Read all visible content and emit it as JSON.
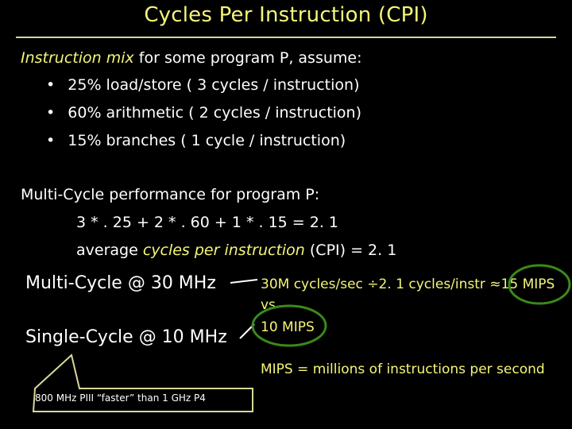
{
  "title": "Cycles Per Instruction (CPI)",
  "intro": {
    "italic": "Instruction mix",
    "rest": " for some program P, assume:"
  },
  "bullets": [
    {
      "mark": "•",
      "text": "25% load/store  ( 3 cycles / instruction)"
    },
    {
      "mark": "•",
      "text": "60% arithmetic  ( 2 cycles / instruction)"
    },
    {
      "mark": "•",
      "text": "15% branches   ( 1 cycle / instruction)"
    }
  ],
  "performance": {
    "heading": "Multi-Cycle performance for program P:",
    "formula": "3 * . 25 + 2 * . 60 + 1 * . 15 = 2. 1",
    "avg_prefix": "average ",
    "avg_italic": "cycles per instruction",
    "avg_suffix": " (CPI) = 2. 1"
  },
  "comparison": {
    "multi_label": "Multi-Cycle @ 30 MHz",
    "single_label": "Single-Cycle @ 10 MHz",
    "multi_result": "30M cycles/sec ÷2. 1 cycles/instr ≈15 MIPS",
    "vs": "vs",
    "single_result": "10 MIPS",
    "mips_note": "MIPS = millions of instructions per second",
    "callout": "800 MHz PIII “faster” than 1 GHz P4"
  },
  "colors": {
    "background": "#000000",
    "text": "#ffffff",
    "accent": "#f5f57a",
    "highlight_circle": "#3a8a1a"
  }
}
